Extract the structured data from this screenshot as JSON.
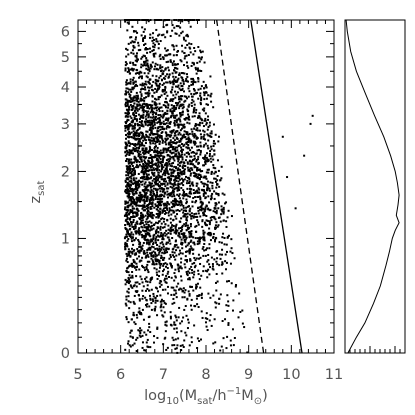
{
  "chart_data": [
    {
      "type": "scatter",
      "title": "",
      "xlabel": {
        "prefix": "log",
        "prefix_sub": "10",
        "open": "(M",
        "m_sub": "sat",
        "mid": "/h",
        "exp": "−1",
        "after": "M",
        "sun_sub": "⊙",
        "close": ")"
      },
      "ylabel": {
        "main": "z",
        "sub": "sat"
      },
      "xlim": [
        5,
        11
      ],
      "ylim": [
        0,
        6.5
      ],
      "yscale": "log(1+z)",
      "x_ticks": [
        "5",
        "6",
        "7",
        "8",
        "9",
        "10",
        "11"
      ],
      "y_ticks": [
        "0",
        "1",
        "2",
        "3",
        "4",
        "5",
        "6"
      ],
      "grid": false,
      "marker_color": "#000000",
      "density_summary": {
        "x_lower_edge": 6.1,
        "x_peak": 6.7,
        "x_upper_edge_at_z0": 9.0,
        "x_upper_edge_at_z3": 8.2,
        "z_peak": 2.0,
        "outlier_points": [
          [
            10.5,
            3.2
          ],
          [
            10.45,
            3.0
          ],
          [
            10.1,
            1.4
          ],
          [
            10.3,
            2.3
          ],
          [
            9.8,
            2.7
          ],
          [
            9.9,
            1.9
          ]
        ]
      },
      "lines": [
        {
          "style": "dashed",
          "points": [
            [
              8.25,
              6.5
            ],
            [
              9.35,
              0
            ]
          ]
        },
        {
          "style": "solid",
          "points": [
            [
              9.05,
              6.5
            ],
            [
              10.25,
              0
            ]
          ]
        }
      ]
    },
    {
      "type": "line",
      "title": "",
      "description_axis": "z_sat distribution (side panel)",
      "ylim": [
        0,
        6.5
      ],
      "yscale": "log(1+z)",
      "profile": [
        [
          0.0,
          0.05
        ],
        [
          0.1,
          0.2
        ],
        [
          0.2,
          0.35
        ],
        [
          0.35,
          0.5
        ],
        [
          0.5,
          0.62
        ],
        [
          0.7,
          0.72
        ],
        [
          0.85,
          0.78
        ],
        [
          1.0,
          0.83
        ],
        [
          1.1,
          0.88
        ],
        [
          1.2,
          0.95
        ],
        [
          1.3,
          0.9
        ],
        [
          1.45,
          0.93
        ],
        [
          1.6,
          0.95
        ],
        [
          1.8,
          0.92
        ],
        [
          2.0,
          0.88
        ],
        [
          2.3,
          0.8
        ],
        [
          2.7,
          0.68
        ],
        [
          3.2,
          0.52
        ],
        [
          3.8,
          0.36
        ],
        [
          4.5,
          0.2
        ],
        [
          5.2,
          0.1
        ],
        [
          6.0,
          0.04
        ],
        [
          6.5,
          0.02
        ]
      ]
    }
  ]
}
